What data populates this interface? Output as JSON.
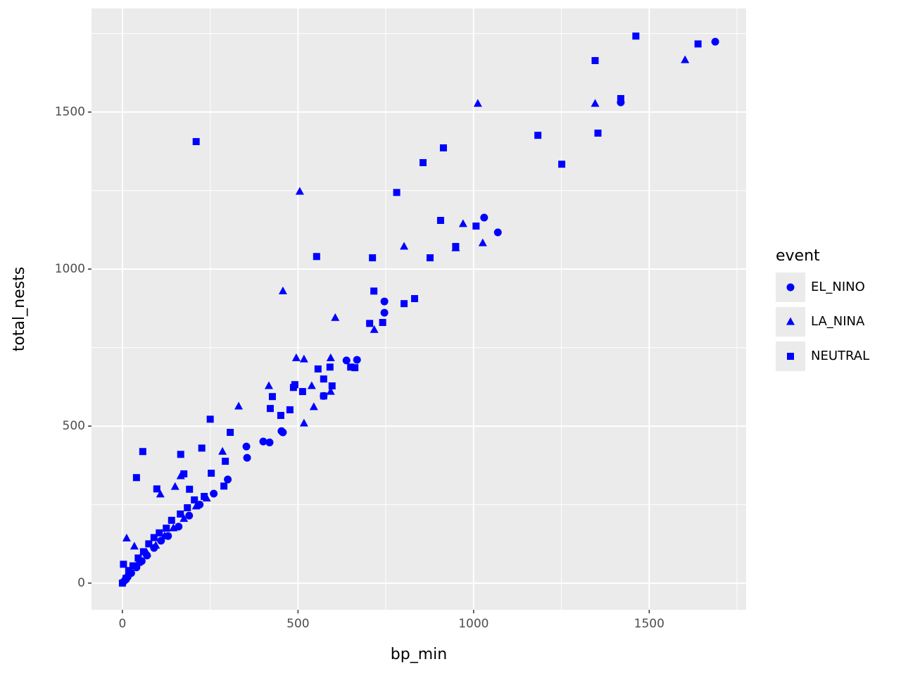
{
  "chart_data": {
    "type": "scatter",
    "x_label": "bp_min",
    "y_label": "total_nests",
    "xlim": [
      -88,
      1776
    ],
    "ylim": [
      -85,
      1830
    ],
    "xticks": [
      0,
      500,
      1000,
      1500
    ],
    "yticks": [
      0,
      500,
      1000,
      1500
    ],
    "grid": true,
    "minor_grid": true,
    "legend_title": "event",
    "legend_position": "right",
    "series": [
      {
        "name": "EL_NINO",
        "color": "#0000ff",
        "shape": "circle",
        "x": [
          1688,
          1419,
          1030,
          1069,
          746,
          746,
          638,
          668,
          453,
          457,
          401,
          353,
          355,
          419,
          573,
          2,
          8,
          15,
          25,
          40,
          55,
          70,
          90,
          110,
          130,
          160,
          190,
          220,
          260,
          300
        ],
        "values": [
          1724,
          1531,
          1164,
          1117,
          897,
          861,
          709,
          711,
          484,
          480,
          451,
          435,
          399,
          448,
          596,
          3,
          10,
          20,
          32,
          50,
          70,
          88,
          112,
          135,
          150,
          180,
          215,
          250,
          285,
          330
        ]
      },
      {
        "name": "LA_NINA",
        "color": "#0000ff",
        "shape": "triangle",
        "x": [
          1602,
          1346,
          1012,
          505,
          970,
          1026,
          802,
          949,
          457,
          606,
          717,
          495,
          517,
          593,
          539,
          593,
          417,
          331,
          517,
          545,
          285,
          12,
          108,
          150,
          166,
          34,
          5,
          20,
          45,
          70,
          95,
          120,
          145,
          175,
          210,
          240
        ],
        "values": [
          1666,
          1527,
          1527,
          1247,
          1144,
          1083,
          1072,
          1067,
          930,
          845,
          807,
          717,
          713,
          717,
          628,
          610,
          628,
          563,
          509,
          561,
          419,
          143,
          283,
          307,
          341,
          117,
          12,
          35,
          65,
          95,
          120,
          150,
          175,
          205,
          245,
          270
        ]
      },
      {
        "name": "NEUTRAL",
        "color": "#0000ff",
        "shape": "square",
        "x": [
          1462,
          1639,
          1346,
          1419,
          1354,
          1183,
          1251,
          210,
          914,
          856,
          781,
          906,
          1007,
          949,
          876,
          712,
          553,
          716,
          832,
          802,
          704,
          741,
          557,
          591,
          650,
          662,
          573,
          597,
          491,
          487,
          513,
          573,
          427,
          250,
          421,
          477,
          451,
          307,
          58,
          40,
          98,
          166,
          226,
          175,
          191,
          233,
          253,
          293,
          289,
          0,
          3,
          10,
          18,
          30,
          45,
          60,
          75,
          90,
          105,
          125,
          140,
          165,
          185,
          205
        ],
        "values": [
          1742,
          1717,
          1664,
          1543,
          1433,
          1426,
          1334,
          1406,
          1386,
          1339,
          1244,
          1155,
          1137,
          1072,
          1036,
          1036,
          1040,
          930,
          906,
          890,
          827,
          830,
          682,
          688,
          688,
          686,
          650,
          628,
          632,
          623,
          610,
          596,
          594,
          522,
          556,
          552,
          534,
          480,
          419,
          336,
          300,
          410,
          430,
          348,
          299,
          276,
          350,
          388,
          309,
          0,
          60,
          15,
          40,
          55,
          80,
          100,
          125,
          145,
          160,
          175,
          200,
          220,
          240,
          265
        ]
      }
    ]
  }
}
